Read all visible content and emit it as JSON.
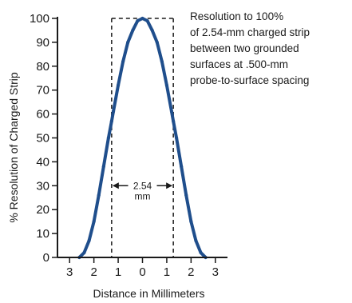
{
  "chart_data": {
    "type": "line",
    "title": "",
    "xlabel": "Distance in Millimeters",
    "ylabel": "% Resolution of Charged Strip",
    "xlim": [
      -3.5,
      3.5
    ],
    "ylim": [
      0,
      100
    ],
    "x_ticks": [
      -3,
      -2,
      -1,
      0,
      1,
      2,
      3
    ],
    "x_tick_labels": [
      "3",
      "2",
      "1",
      "0",
      "1",
      "2",
      "3"
    ],
    "y_ticks": [
      0,
      10,
      20,
      30,
      40,
      50,
      60,
      70,
      80,
      90,
      100
    ],
    "y_tick_labels": [
      "0",
      "10",
      "20",
      "30",
      "40",
      "50",
      "60",
      "70",
      "80",
      "90",
      "100"
    ],
    "grid": false,
    "series": [
      {
        "x": [
          -2.6,
          -2.4,
          -2.2,
          -2.0,
          -1.8,
          -1.6,
          -1.4,
          -1.27,
          -1.2,
          -1.0,
          -0.8,
          -0.6,
          -0.4,
          -0.2,
          0.0,
          0.2,
          0.4,
          0.6,
          0.8,
          1.0,
          1.2,
          1.27,
          1.4,
          1.6,
          1.8,
          2.0,
          2.2,
          2.4,
          2.6
        ],
        "y": [
          0,
          2,
          7,
          15,
          26,
          38,
          50,
          57,
          61,
          72,
          82,
          90,
          95,
          99,
          100,
          99,
          95,
          90,
          82,
          72,
          61,
          57,
          50,
          38,
          26,
          15,
          7,
          2,
          0
        ],
        "color": "#1f4e8c"
      }
    ],
    "reference_box": {
      "x": [
        -1.27,
        1.27
      ],
      "y": [
        0,
        100
      ]
    },
    "width_annotation": {
      "x": [
        -1.27,
        1.27
      ],
      "y": 30,
      "lines": [
        "2.54",
        "mm"
      ]
    },
    "annotation_lines": [
      "Resolution to 100%",
      "of 2.54-mm charged strip",
      "between two grounded",
      "surfaces at .500-mm",
      "probe-to-surface spacing"
    ],
    "annotation_placement": "top-right"
  }
}
